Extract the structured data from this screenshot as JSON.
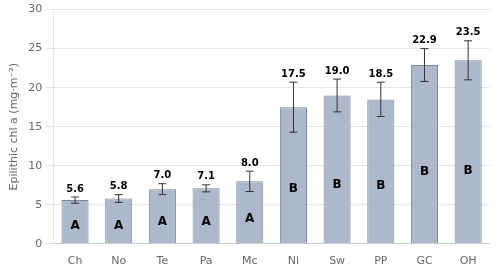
{
  "chart_data": {
    "type": "bar",
    "y_label": "Epilithic chl a (mg·m⁻²)",
    "categories": [
      "Ch",
      "No",
      "Te",
      "Pa",
      "Mc",
      "Ni",
      "Sw",
      "PP",
      "GC",
      "OH"
    ],
    "values": [
      5.6,
      5.8,
      7.0,
      7.1,
      8.0,
      17.5,
      19.0,
      18.5,
      22.9,
      23.5
    ],
    "value_labels": [
      "5.6",
      "5.8",
      "7.0",
      "7.1",
      "8.0",
      "17.5",
      "19.0",
      "18.5",
      "22.9",
      "23.5"
    ],
    "errors": [
      0.4,
      0.5,
      0.7,
      0.45,
      1.3,
      3.2,
      2.1,
      2.2,
      2.1,
      2.5
    ],
    "group_letters": [
      "A",
      "A",
      "A",
      "A",
      "A",
      "B",
      "B",
      "B",
      "B",
      "B"
    ],
    "color": "#adb9ca",
    "ylim": [
      0,
      30
    ],
    "yticks": [
      0,
      5,
      10,
      15,
      20,
      25,
      30
    ],
    "grid": true,
    "data_labels": true
  }
}
